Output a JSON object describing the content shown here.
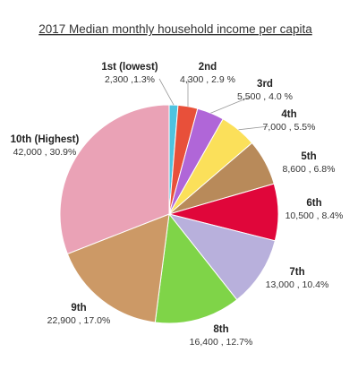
{
  "chart_data": {
    "type": "pie",
    "title": "2017 Median monthly household income per capita",
    "slices": [
      {
        "name": "1st (lowest)",
        "value": 2300,
        "percent": 1.3,
        "value_label": "2,300 ,1.3%",
        "color": "#4fc3e0"
      },
      {
        "name": "2nd",
        "value": 4300,
        "percent": 2.9,
        "value_label": "4,300 , 2.9 %",
        "color": "#e8503a"
      },
      {
        "name": "3rd",
        "value": 5500,
        "percent": 4.0,
        "value_label": "5,500 , 4.0 %",
        "color": "#b066d8"
      },
      {
        "name": "4th",
        "value": 7000,
        "percent": 5.5,
        "value_label": "7,000 , 5.5%",
        "color": "#fbe05a"
      },
      {
        "name": "5th",
        "value": 8600,
        "percent": 6.8,
        "value_label": "8,600 , 6.8%",
        "color": "#b88a5a"
      },
      {
        "name": "6th",
        "value": 10500,
        "percent": 8.4,
        "value_label": "10,500 , 8.4%",
        "color": "#e0063a"
      },
      {
        "name": "7th",
        "value": 13000,
        "percent": 10.4,
        "value_label": "13,000 , 10.4%",
        "color": "#b8b0dc"
      },
      {
        "name": "8th",
        "value": 16400,
        "percent": 12.7,
        "value_label": "16,400 , 12.7%",
        "color": "#7fd448"
      },
      {
        "name": "9th",
        "value": 22900,
        "percent": 17.0,
        "value_label": "22,900 , 17.0%",
        "color": "#cc9966"
      },
      {
        "name": "10th (Highest)",
        "value": 42000,
        "percent": 30.9,
        "value_label": "42,000 , 30.9%",
        "color": "#eaa2b6"
      }
    ]
  }
}
